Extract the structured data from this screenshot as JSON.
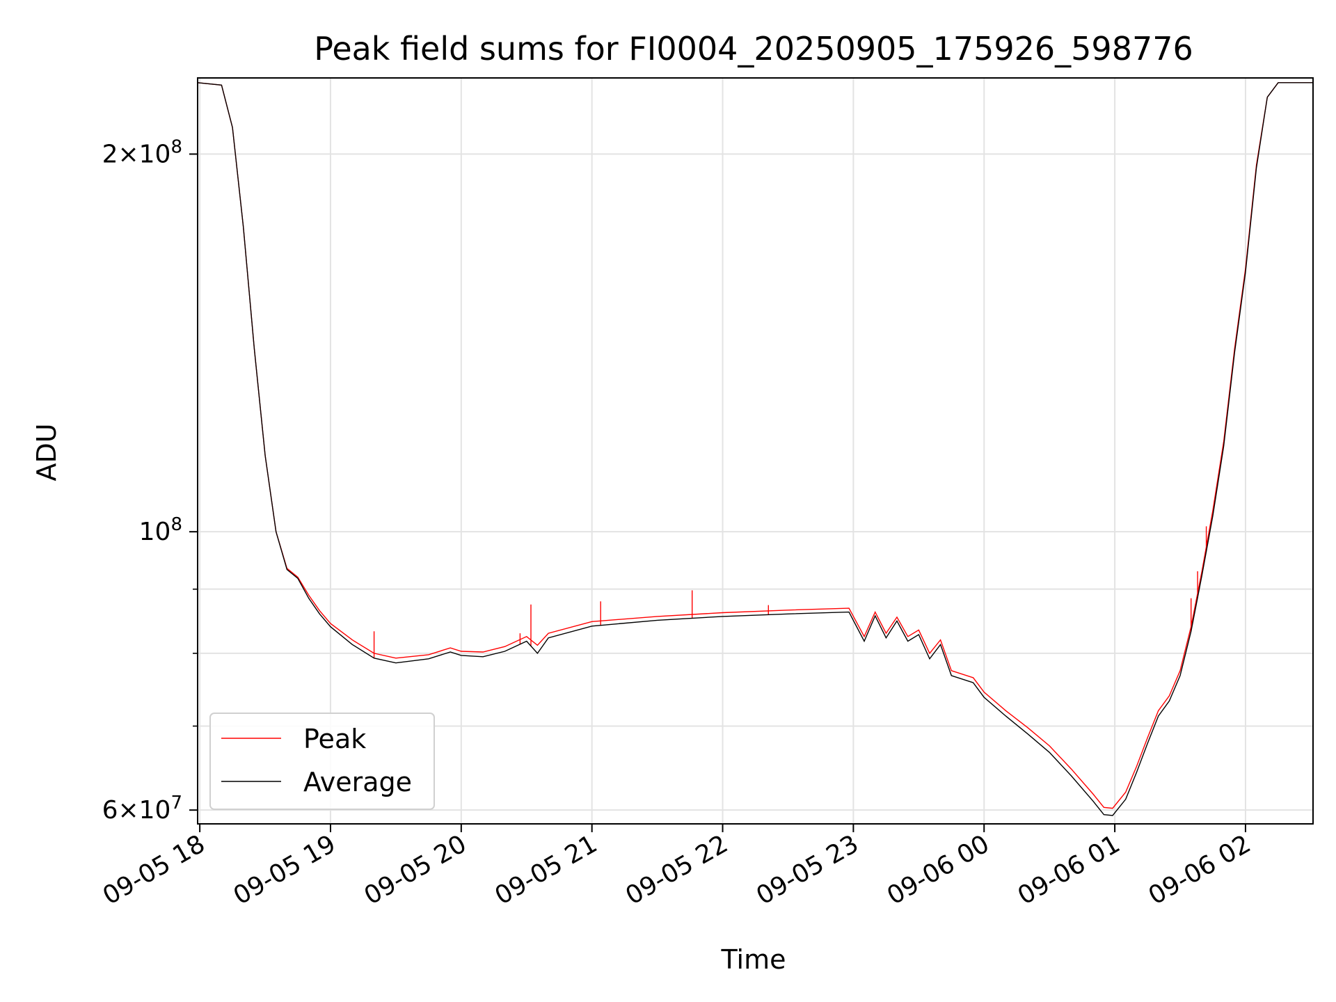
{
  "chart_data": {
    "type": "line",
    "title": "Peak field sums for FI0004_20250905_175926_598776",
    "xlabel": "Time",
    "ylabel": "ADU",
    "yscale": "log",
    "ylim": [
      58500000,
      230000000
    ],
    "xlim": [
      "2025-09-05 17:59",
      "2025-09-06 02:31"
    ],
    "grid": true,
    "legend_position": "lower-left",
    "x_ticks": [
      {
        "time": "2025-09-05 18:00",
        "label": "09-05 18"
      },
      {
        "time": "2025-09-05 19:00",
        "label": "09-05 19"
      },
      {
        "time": "2025-09-05 20:00",
        "label": "09-05 20"
      },
      {
        "time": "2025-09-05 21:00",
        "label": "09-05 21"
      },
      {
        "time": "2025-09-05 22:00",
        "label": "09-05 22"
      },
      {
        "time": "2025-09-05 23:00",
        "label": "09-05 23"
      },
      {
        "time": "2025-09-06 00:00",
        "label": "09-06 00"
      },
      {
        "time": "2025-09-06 01:00",
        "label": "09-06 01"
      },
      {
        "time": "2025-09-06 02:00",
        "label": "09-06 02"
      }
    ],
    "y_ticks": [
      {
        "value": 60000000,
        "mantissa": "6",
        "exponent": "7"
      },
      {
        "value": 100000000,
        "mantissa": "",
        "exponent": "8"
      },
      {
        "value": 200000000,
        "mantissa": "2",
        "exponent": "8"
      }
    ],
    "y_minor_ticks": [
      70000000,
      80000000,
      90000000
    ],
    "series": [
      {
        "name": "Peak",
        "color": "#ff0000",
        "points": [
          [
            "2025-09-05 17:59",
            228000000
          ],
          [
            "2025-09-05 18:10",
            227000000
          ],
          [
            "2025-09-05 18:15",
            210000000
          ],
          [
            "2025-09-05 18:20",
            175000000
          ],
          [
            "2025-09-05 18:25",
            140000000
          ],
          [
            "2025-09-05 18:30",
            115000000
          ],
          [
            "2025-09-05 18:35",
            100000000
          ],
          [
            "2025-09-05 18:40",
            93500000
          ],
          [
            "2025-09-05 18:45",
            92000000
          ],
          [
            "2025-09-05 18:50",
            89000000
          ],
          [
            "2025-09-05 18:55",
            86500000
          ],
          [
            "2025-09-05 19:00",
            84500000
          ],
          [
            "2025-09-05 19:10",
            82000000
          ],
          [
            "2025-09-05 19:20",
            80000000
          ],
          [
            "2025-09-05 19:30",
            79300000
          ],
          [
            "2025-09-05 19:45",
            79800000
          ],
          [
            "2025-09-05 19:55",
            80800000
          ],
          [
            "2025-09-05 20:00",
            80300000
          ],
          [
            "2025-09-05 20:10",
            80200000
          ],
          [
            "2025-09-05 20:20",
            81000000
          ],
          [
            "2025-09-05 20:30",
            82500000
          ],
          [
            "2025-09-05 20:35",
            81200000
          ],
          [
            "2025-09-05 20:40",
            83000000
          ],
          [
            "2025-09-05 21:00",
            84800000
          ],
          [
            "2025-09-05 21:30",
            85600000
          ],
          [
            "2025-09-05 22:00",
            86200000
          ],
          [
            "2025-09-05 22:30",
            86600000
          ],
          [
            "2025-09-05 22:58",
            86900000
          ],
          [
            "2025-09-05 23:05",
            82500000
          ],
          [
            "2025-09-05 23:10",
            86300000
          ],
          [
            "2025-09-05 23:15",
            83000000
          ],
          [
            "2025-09-05 23:20",
            85500000
          ],
          [
            "2025-09-05 23:25",
            82500000
          ],
          [
            "2025-09-05 23:30",
            83500000
          ],
          [
            "2025-09-05 23:35",
            80000000
          ],
          [
            "2025-09-05 23:40",
            82000000
          ],
          [
            "2025-09-05 23:45",
            77500000
          ],
          [
            "2025-09-05 23:55",
            76500000
          ],
          [
            "2025-09-06 00:00",
            74500000
          ],
          [
            "2025-09-06 00:10",
            72000000
          ],
          [
            "2025-09-06 00:20",
            69800000
          ],
          [
            "2025-09-06 00:30",
            67500000
          ],
          [
            "2025-09-06 00:40",
            64700000
          ],
          [
            "2025-09-06 00:50",
            61800000
          ],
          [
            "2025-09-06 00:55",
            60300000
          ],
          [
            "2025-09-06 00:59",
            60200000
          ],
          [
            "2025-09-06 01:05",
            62000000
          ],
          [
            "2025-09-06 01:10",
            65000000
          ],
          [
            "2025-09-06 01:15",
            68500000
          ],
          [
            "2025-09-06 01:20",
            72000000
          ],
          [
            "2025-09-06 01:25",
            74000000
          ],
          [
            "2025-09-06 01:30",
            77500000
          ],
          [
            "2025-09-06 01:35",
            84000000
          ],
          [
            "2025-09-06 01:40",
            93000000
          ],
          [
            "2025-09-06 01:45",
            104000000
          ],
          [
            "2025-09-06 01:50",
            118000000
          ],
          [
            "2025-09-06 01:55",
            140000000
          ],
          [
            "2025-09-06 02:00",
            162000000
          ],
          [
            "2025-09-06 02:05",
            196000000
          ],
          [
            "2025-09-06 02:10",
            222000000
          ],
          [
            "2025-09-06 02:15",
            228000000
          ],
          [
            "2025-09-06 02:31",
            228000000
          ]
        ],
        "spikes": [
          [
            "2025-09-05 19:20",
            83300000
          ],
          [
            "2025-09-05 20:27",
            83000000
          ],
          [
            "2025-09-05 20:32",
            87500000
          ],
          [
            "2025-09-05 21:04",
            88000000
          ],
          [
            "2025-09-05 21:46",
            89800000
          ],
          [
            "2025-09-05 22:21",
            87400000
          ],
          [
            "2025-09-06 01:35",
            88500000
          ],
          [
            "2025-09-06 01:38",
            93000000
          ],
          [
            "2025-09-06 01:42",
            101000000
          ]
        ]
      },
      {
        "name": "Average",
        "color": "#000000",
        "points": [
          [
            "2025-09-05 17:59",
            228000000
          ],
          [
            "2025-09-05 18:10",
            227000000
          ],
          [
            "2025-09-05 18:15",
            210000000
          ],
          [
            "2025-09-05 18:20",
            175000000
          ],
          [
            "2025-09-05 18:25",
            140000000
          ],
          [
            "2025-09-05 18:30",
            115000000
          ],
          [
            "2025-09-05 18:35",
            100000000
          ],
          [
            "2025-09-05 18:40",
            93300000
          ],
          [
            "2025-09-05 18:45",
            91800000
          ],
          [
            "2025-09-05 18:50",
            88500000
          ],
          [
            "2025-09-05 18:55",
            86000000
          ],
          [
            "2025-09-05 19:00",
            84000000
          ],
          [
            "2025-09-05 19:10",
            81300000
          ],
          [
            "2025-09-05 19:20",
            79300000
          ],
          [
            "2025-09-05 19:30",
            78600000
          ],
          [
            "2025-09-05 19:45",
            79200000
          ],
          [
            "2025-09-05 19:55",
            80200000
          ],
          [
            "2025-09-05 20:00",
            79700000
          ],
          [
            "2025-09-05 20:10",
            79500000
          ],
          [
            "2025-09-05 20:20",
            80300000
          ],
          [
            "2025-09-05 20:30",
            81800000
          ],
          [
            "2025-09-05 20:35",
            80000000
          ],
          [
            "2025-09-05 20:40",
            82300000
          ],
          [
            "2025-09-05 21:00",
            84100000
          ],
          [
            "2025-09-05 21:30",
            85000000
          ],
          [
            "2025-09-05 22:00",
            85600000
          ],
          [
            "2025-09-05 22:30",
            86000000
          ],
          [
            "2025-09-05 22:58",
            86300000
          ],
          [
            "2025-09-05 23:05",
            81800000
          ],
          [
            "2025-09-05 23:10",
            85700000
          ],
          [
            "2025-09-05 23:15",
            82300000
          ],
          [
            "2025-09-05 23:20",
            84900000
          ],
          [
            "2025-09-05 23:25",
            81800000
          ],
          [
            "2025-09-05 23:30",
            82800000
          ],
          [
            "2025-09-05 23:35",
            79200000
          ],
          [
            "2025-09-05 23:40",
            81300000
          ],
          [
            "2025-09-05 23:45",
            76800000
          ],
          [
            "2025-09-05 23:55",
            75800000
          ],
          [
            "2025-09-06 00:00",
            73800000
          ],
          [
            "2025-09-06 00:10",
            71300000
          ],
          [
            "2025-09-06 00:20",
            69000000
          ],
          [
            "2025-09-06 00:30",
            66700000
          ],
          [
            "2025-09-06 00:40",
            63900000
          ],
          [
            "2025-09-06 00:50",
            61000000
          ],
          [
            "2025-09-06 00:55",
            59500000
          ],
          [
            "2025-09-06 00:59",
            59400000
          ],
          [
            "2025-09-06 01:05",
            61200000
          ],
          [
            "2025-09-06 01:10",
            64300000
          ],
          [
            "2025-09-06 01:15",
            67800000
          ],
          [
            "2025-09-06 01:20",
            71300000
          ],
          [
            "2025-09-06 01:25",
            73300000
          ],
          [
            "2025-09-06 01:30",
            76800000
          ],
          [
            "2025-09-06 01:35",
            83300000
          ],
          [
            "2025-09-06 01:40",
            92300000
          ],
          [
            "2025-09-06 01:45",
            103000000
          ],
          [
            "2025-09-06 01:50",
            117000000
          ],
          [
            "2025-09-06 01:55",
            139000000
          ],
          [
            "2025-09-06 02:00",
            161000000
          ],
          [
            "2025-09-06 02:05",
            195000000
          ],
          [
            "2025-09-06 02:10",
            222000000
          ],
          [
            "2025-09-06 02:15",
            228000000
          ],
          [
            "2025-09-06 02:31",
            228000000
          ]
        ]
      }
    ]
  }
}
